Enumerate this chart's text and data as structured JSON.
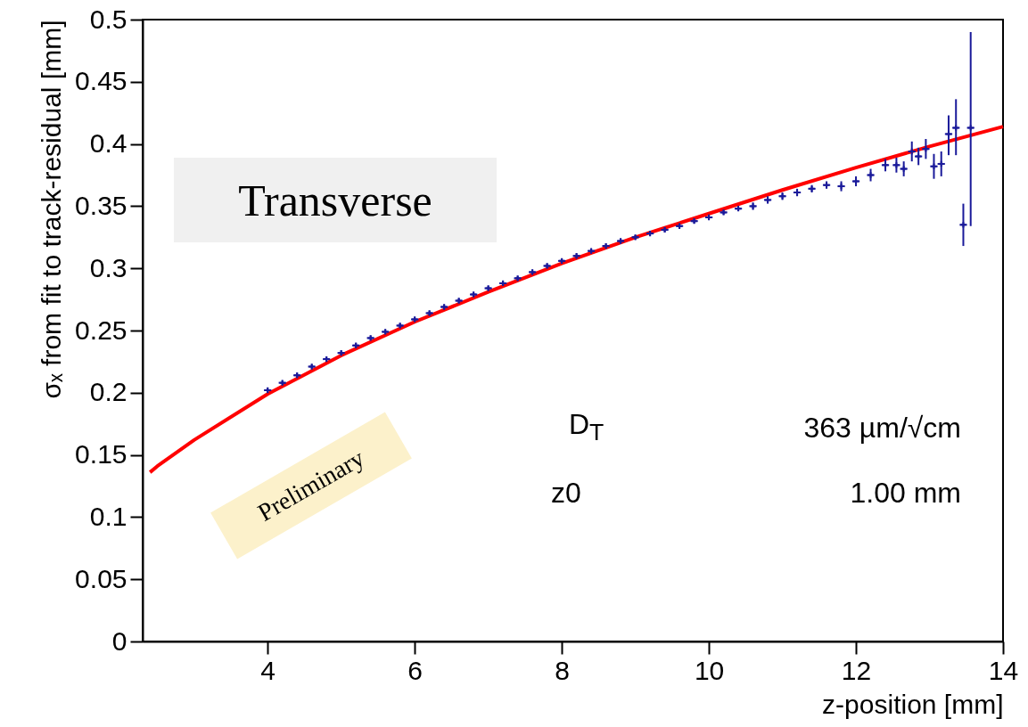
{
  "chart_data": {
    "type": "scatter",
    "xlabel": "z-position [mm]",
    "ylabel": "σₓ from fit to track-residual [mm]",
    "xlim": [
      2.3,
      14
    ],
    "xticks": [
      4,
      6,
      8,
      10,
      12,
      14
    ],
    "ylim": [
      0,
      0.5
    ],
    "yticks": [
      0,
      0.05,
      0.1,
      0.15,
      0.2,
      0.25,
      0.3,
      0.35,
      0.4,
      0.45,
      0.5
    ],
    "grid": false,
    "annotations": [
      "Transverse",
      "Preliminary",
      "D$_{T}$",
      "363 µm/√cm",
      "z0",
      "1.00 mm"
    ],
    "series": [
      {
        "marker": "cross",
        "color": "#1a1a9a",
        "x": [
          4.0,
          4.2,
          4.4,
          4.6,
          4.8,
          5.0,
          5.2,
          5.4,
          5.6,
          5.8,
          6.0,
          6.2,
          6.4,
          6.6,
          6.8,
          7.0,
          7.2,
          7.4,
          7.6,
          7.8,
          8.0,
          8.2,
          8.4,
          8.6,
          8.8,
          9.0,
          9.2,
          9.4,
          9.6,
          9.8,
          10.0,
          10.2,
          10.4,
          10.6,
          10.8,
          11.0,
          11.2,
          11.4,
          11.6,
          11.8,
          12.0,
          12.2,
          12.4,
          12.55,
          12.65,
          12.76,
          12.85,
          12.95,
          13.06,
          13.16,
          13.26,
          13.36,
          13.46,
          13.56
        ],
        "values": [
          0.202,
          0.208,
          0.214,
          0.221,
          0.227,
          0.232,
          0.238,
          0.244,
          0.249,
          0.254,
          0.259,
          0.264,
          0.269,
          0.274,
          0.279,
          0.284,
          0.288,
          0.292,
          0.297,
          0.302,
          0.306,
          0.31,
          0.314,
          0.318,
          0.322,
          0.325,
          0.328,
          0.331,
          0.334,
          0.338,
          0.341,
          0.345,
          0.348,
          0.35,
          0.355,
          0.358,
          0.361,
          0.364,
          0.367,
          0.366,
          0.37,
          0.375,
          0.383,
          0.383,
          0.38,
          0.394,
          0.39,
          0.396,
          0.382,
          0.384,
          0.408,
          0.413,
          0.335,
          0.413
        ],
        "errors": [
          0.002,
          0.002,
          0.002,
          0.002,
          0.002,
          0.002,
          0.002,
          0.002,
          0.002,
          0.002,
          0.002,
          0.002,
          0.002,
          0.002,
          0.002,
          0.002,
          0.002,
          0.002,
          0.002,
          0.002,
          0.002,
          0.002,
          0.002,
          0.002,
          0.002,
          0.002,
          0.002,
          0.002,
          0.002,
          0.002,
          0.002,
          0.002,
          0.002,
          0.003,
          0.003,
          0.003,
          0.003,
          0.003,
          0.003,
          0.004,
          0.004,
          0.005,
          0.005,
          0.006,
          0.006,
          0.008,
          0.007,
          0.008,
          0.01,
          0.01,
          [
            0.391,
            0.423
          ],
          [
            0.391,
            0.436
          ],
          [
            0.318,
            0.352
          ],
          [
            0.334,
            0.49
          ]
        ],
        "xerrors": [
          0.05,
          0.05,
          0.05,
          0.05,
          0.05,
          0.05,
          0.05,
          0.05,
          0.05,
          0.05,
          0.05,
          0.05,
          0.05,
          0.05,
          0.05,
          0.05,
          0.05,
          0.05,
          0.05,
          0.05,
          0.05,
          0.05,
          0.05,
          0.05,
          0.05,
          0.05,
          0.05,
          0.05,
          0.05,
          0.05,
          0.05,
          0.05,
          0.05,
          0.05,
          0.05,
          0.05,
          0.05,
          0.05,
          0.05,
          0.05,
          0.05,
          0.05,
          0.05,
          0.05,
          0.05,
          0.05,
          0.05,
          0.05,
          0.05,
          0.05,
          0.05,
          0.05,
          0.05,
          0.05
        ]
      },
      {
        "type": "line",
        "color": "#ff0000",
        "x": [
          2.4,
          2.5,
          3,
          4,
          5,
          6,
          7,
          8,
          9,
          10,
          11,
          12,
          13,
          14
        ],
        "values": [
          0.136,
          0.141,
          0.162,
          0.199,
          0.23,
          0.257,
          0.281,
          0.304,
          0.325,
          0.344,
          0.363,
          0.381,
          0.398,
          0.414
        ]
      }
    ]
  }
}
